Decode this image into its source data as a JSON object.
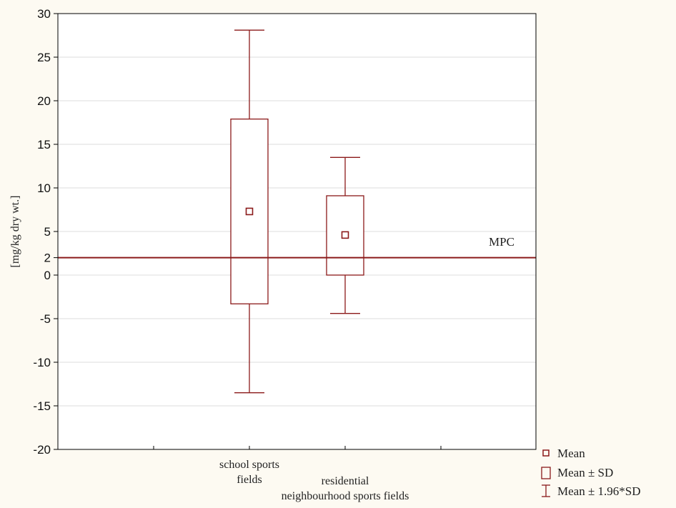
{
  "chart_data": {
    "type": "box",
    "ylabel": "[mg/kg dry wt.]",
    "ylim": [
      -20,
      30
    ],
    "y_ticks": [
      "30",
      "25",
      "20",
      "15",
      "10",
      "5",
      "2",
      "0",
      "-5",
      "-10",
      "-15",
      "-20"
    ],
    "y_tick_values": [
      30,
      25,
      20,
      15,
      10,
      5,
      2,
      0,
      -5,
      -10,
      -15,
      -20
    ],
    "grid": true,
    "categories": [
      {
        "label_lines": [
          "school sports",
          "fields"
        ]
      },
      {
        "label_lines": [
          "residential",
          "neighbourhood sports fields"
        ]
      }
    ],
    "series": [
      {
        "category": 0,
        "mean": 7.3,
        "mean_minus_sd": -3.3,
        "mean_plus_sd": 17.9,
        "mean_minus_1_96_sd": -13.5,
        "mean_plus_1_96_sd": 28.1
      },
      {
        "category": 1,
        "mean": 4.6,
        "mean_minus_sd": 0.0,
        "mean_plus_sd": 9.1,
        "mean_minus_1_96_sd": -4.4,
        "mean_plus_1_96_sd": 13.5
      }
    ],
    "reference_line": {
      "label": "MPC",
      "value": 2
    },
    "legend": {
      "position": "bottom-right",
      "items": [
        "Mean",
        "Mean ± SD",
        "Mean ± 1.96*SD"
      ]
    },
    "colors": {
      "series": "#8b1a1a",
      "grid": "#dcdcdc",
      "axis": "#000000",
      "background": "#fdfaf2",
      "plot_background": "#ffffff"
    }
  }
}
